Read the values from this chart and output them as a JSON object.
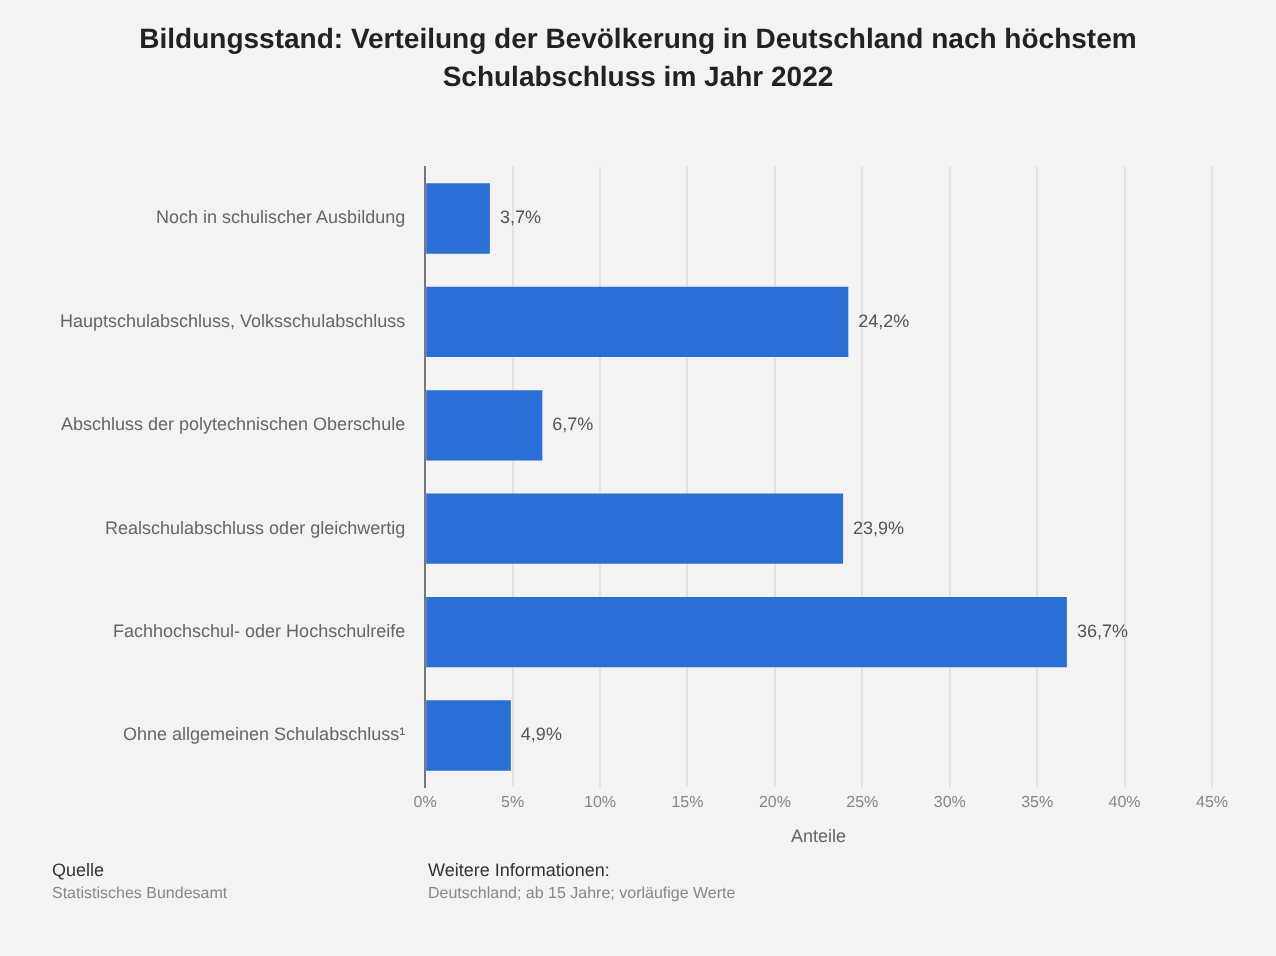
{
  "chart_data": {
    "type": "bar",
    "orientation": "horizontal",
    "title": "Bildungsstand: Verteilung der Bevölkerung in Deutschland nach höchstem Schulabschluss im Jahr 2022",
    "xlabel": "Anteile",
    "categories": [
      "Noch in schulischer Ausbildung",
      "Hauptschulabschluss, Volksschulabschluss",
      "Abschluss der polytechnischen Oberschule",
      "Realschulabschluss oder gleichwertig",
      "Fachhochschul- oder Hochschulreife",
      "Ohne allgemeinen Schulabschluss¹"
    ],
    "values": [
      3.7,
      24.2,
      6.7,
      23.9,
      36.7,
      4.9
    ],
    "value_labels": [
      "3,7%",
      "24,2%",
      "6,7%",
      "23,9%",
      "36,7%",
      "4,9%"
    ],
    "color": "#2a6fd6",
    "xlim": [
      0,
      45
    ],
    "xticks": [
      {
        "value": 0,
        "label": "0%"
      },
      {
        "value": 5,
        "label": "5%"
      },
      {
        "value": 10,
        "label": "10%"
      },
      {
        "value": 15,
        "label": "15%"
      },
      {
        "value": 20,
        "label": "20%"
      },
      {
        "value": 25,
        "label": "25%"
      },
      {
        "value": 30,
        "label": "30%"
      },
      {
        "value": 35,
        "label": "35%"
      },
      {
        "value": 40,
        "label": "40%"
      },
      {
        "value": 45,
        "label": "45%"
      }
    ],
    "grid": "x",
    "legend": false,
    "annotations": [
      "Quelle",
      "Statistisches Bundesamt",
      "Weitere Informationen:",
      "Deutschland; ab 15 Jahre; vorläufige Werte"
    ]
  }
}
